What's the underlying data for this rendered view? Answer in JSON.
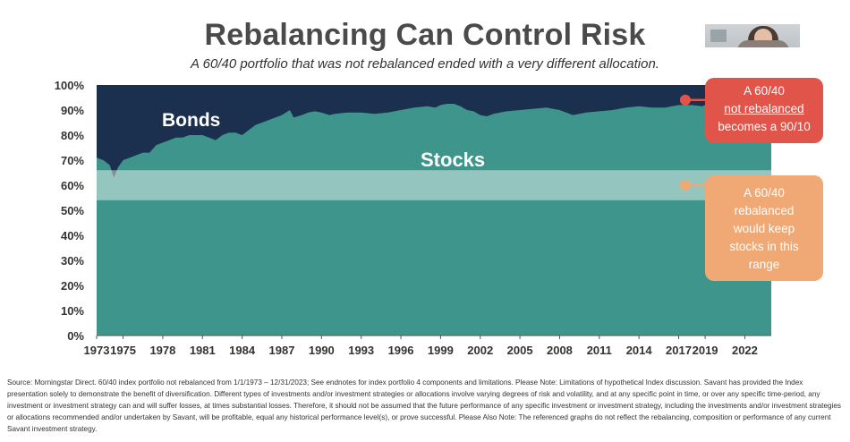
{
  "title": "Rebalancing Can Control Risk",
  "subtitle": "A 60/40 portfolio that was not rebalanced ended with a very different allocation.",
  "chart_data": {
    "type": "area",
    "stacked": true,
    "ylim": [
      0,
      100
    ],
    "xlim": [
      1973,
      2024
    ],
    "y_ticks": [
      "0%",
      "10%",
      "20%",
      "30%",
      "40%",
      "50%",
      "60%",
      "70%",
      "80%",
      "90%",
      "100%"
    ],
    "x_ticks": [
      "1973",
      "1975",
      "1978",
      "1981",
      "1984",
      "1987",
      "1990",
      "1993",
      "1996",
      "1999",
      "2002",
      "2005",
      "2008",
      "2011",
      "2014",
      "2017",
      "2019",
      "2022"
    ],
    "x_tick_values": [
      1973,
      1975,
      1978,
      1981,
      1984,
      1987,
      1990,
      1993,
      1996,
      1999,
      2002,
      2005,
      2008,
      2011,
      2014,
      2017,
      2019,
      2022
    ],
    "series": [
      {
        "name": "Stocks",
        "color": "#3e958b",
        "x": [
          1973.0,
          1973.5,
          1974.0,
          1974.3,
          1974.6,
          1975.0,
          1975.5,
          1976.0,
          1976.5,
          1977.0,
          1977.5,
          1978.0,
          1978.5,
          1979.0,
          1979.5,
          1980.0,
          1980.5,
          1981.0,
          1981.5,
          1982.0,
          1982.5,
          1983.0,
          1983.5,
          1984.0,
          1984.5,
          1985.0,
          1985.5,
          1986.0,
          1986.5,
          1987.0,
          1987.6,
          1987.9,
          1988.5,
          1989.0,
          1989.5,
          1990.0,
          1990.6,
          1991.0,
          1992.0,
          1993.0,
          1994.0,
          1995.0,
          1996.0,
          1997.0,
          1998.0,
          1998.6,
          1999.0,
          1999.5,
          2000.0,
          2000.5,
          2001.0,
          2001.5,
          2002.0,
          2002.5,
          2003.0,
          2003.5,
          2004.0,
          2005.0,
          2006.0,
          2007.0,
          2007.5,
          2008.0,
          2008.5,
          2009.0,
          2009.5,
          2010.0,
          2011.0,
          2012.0,
          2013.0,
          2014.0,
          2015.0,
          2016.0,
          2017.0,
          2018.0,
          2018.8,
          2019.0,
          2019.5,
          2020.0,
          2020.2,
          2020.5,
          2021.0,
          2021.5,
          2022.0,
          2022.5,
          2023.0,
          2024.0
        ],
        "values": [
          71,
          70,
          68,
          63,
          67,
          70,
          71,
          72,
          73,
          73,
          76,
          77,
          78,
          79,
          79,
          80,
          80,
          80,
          79,
          78,
          80,
          81,
          81,
          80,
          82,
          84,
          85,
          86,
          87,
          88,
          90,
          87,
          88,
          89,
          89.5,
          89,
          88,
          88.5,
          89,
          89,
          88.5,
          89,
          90,
          91,
          91.5,
          91,
          92,
          92.5,
          92.5,
          91.5,
          90,
          89.5,
          88,
          87.5,
          88.5,
          89,
          89.5,
          90,
          90.5,
          91,
          90.5,
          90,
          89,
          88,
          88.5,
          89,
          89.5,
          90,
          91,
          91.5,
          91,
          91,
          92,
          92,
          91.5,
          92,
          92.5,
          92,
          90,
          92,
          93,
          93,
          92,
          92,
          92.5,
          93
        ]
      },
      {
        "name": "Bonds",
        "color": "#1b2f4e",
        "note": "remainder to 100%"
      }
    ],
    "band": {
      "range": [
        54,
        66
      ]
    },
    "annotations": [
      {
        "lines": [
          "A 60/40",
          "not rebalanced",
          "becomes a 90/10"
        ],
        "color": "#e0544a",
        "anchor_x": 2017.5,
        "anchor_y": 94
      },
      {
        "lines": [
          "A 60/40",
          "rebalanced",
          "would keep",
          "stocks in this",
          "range"
        ],
        "color": "#f0a874",
        "anchor_x": 2017.5,
        "anchor_y": 60
      }
    ]
  },
  "source_text": "Source: Morningstar Direct. 60/40 index portfolio not rebalanced from 1/1/1973 – 12/31/2023; See endnotes for index portfolio 4 components and limitations.  Please Note: Limitations of hypothetical Index discussion. Savant has provided the Index presentation solely to demonstrate the benefit of diversification. Different types of investments and/or investment strategies or allocations involve varying degrees of risk and volatility, and at any specific point in time, or over any specific time-period, any investment or investment strategy can and will suffer losses, at times substantial losses. Therefore, it should not be assumed that the future performance of any specific investment or investment strategy, including the investments and/or investment strategies or allocations recommended and/or undertaken by Savant, will be profitable, equal any historical performance level(s), or prove successful. Please Also Note: The referenced graphs do not reflect the rebalancing, composition or performance of any current Savant investment strategy."
}
